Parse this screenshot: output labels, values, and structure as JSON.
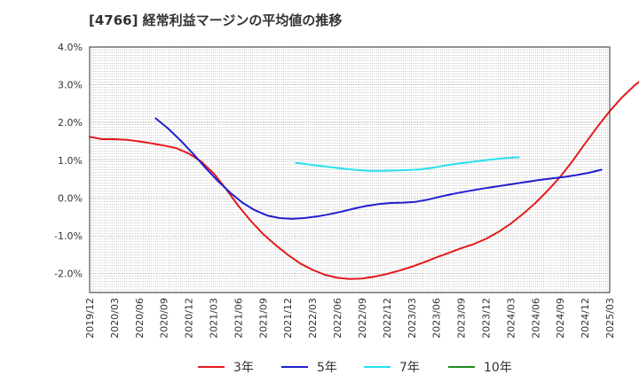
{
  "chart_data": {
    "type": "line",
    "title": "[4766]  経常利益マージンの平均値の推移",
    "xlabel": "",
    "ylabel": "",
    "ylim": [
      -2.5,
      4.0
    ],
    "y_ticks": [
      "4.0%",
      "3.0%",
      "2.0%",
      "1.0%",
      "0.0%",
      "-1.0%",
      "-2.0%"
    ],
    "y_tick_values": [
      4.0,
      3.0,
      2.0,
      1.0,
      0.0,
      -1.0,
      -2.0
    ],
    "x_ticks": [
      "2019/12",
      "2020/03",
      "2020/06",
      "2020/09",
      "2020/12",
      "2021/03",
      "2021/06",
      "2021/09",
      "2021/12",
      "2022/03",
      "2022/06",
      "2022/09",
      "2022/12",
      "2023/03",
      "2023/06",
      "2023/09",
      "2023/12",
      "2024/03",
      "2024/06",
      "2024/09",
      "2024/12",
      "2025/03"
    ],
    "grid": true,
    "legend_position": "bottom",
    "series": [
      {
        "name": "3年",
        "color": "#e31a1c",
        "start_index": 0,
        "values": [
          1.62,
          1.56,
          1.56,
          1.54,
          1.5,
          1.45,
          1.39,
          1.32,
          1.18,
          0.97,
          0.66,
          0.25,
          -0.2,
          -0.6,
          -0.95,
          -1.24,
          -1.5,
          -1.73,
          -1.9,
          -2.03,
          -2.11,
          -2.14,
          -2.13,
          -2.08,
          -2.01,
          -1.92,
          -1.82,
          -1.7,
          -1.57,
          -1.45,
          -1.33,
          -1.22,
          -1.08,
          -0.9,
          -0.68,
          -0.42,
          -0.13,
          0.2,
          0.56,
          0.98,
          1.44,
          1.88,
          2.3,
          2.67,
          2.98,
          3.25,
          3.49,
          3.7
        ]
      },
      {
        "name": "5年",
        "color": "#1f1fcf",
        "start_index": 8,
        "values": [
          2.11,
          1.84,
          1.53,
          1.18,
          0.81,
          0.46,
          0.15,
          -0.12,
          -0.32,
          -0.46,
          -0.53,
          -0.55,
          -0.53,
          -0.49,
          -0.43,
          -0.36,
          -0.28,
          -0.21,
          -0.16,
          -0.13,
          -0.12,
          -0.1,
          -0.04,
          0.04,
          0.11,
          0.17,
          0.23,
          0.28,
          0.33,
          0.38,
          0.43,
          0.48,
          0.52,
          0.56,
          0.61,
          0.67,
          0.75
        ]
      },
      {
        "name": "7年",
        "color": "#26e0ee",
        "start_index": 25,
        "values": [
          0.93,
          0.89,
          0.85,
          0.81,
          0.77,
          0.74,
          0.72,
          0.72,
          0.73,
          0.74,
          0.76,
          0.8,
          0.86,
          0.91,
          0.95,
          0.99,
          1.03,
          1.06,
          1.08
        ]
      },
      {
        "name": "10年",
        "color": "#1e8c1e",
        "start_index": 0,
        "values": []
      }
    ]
  }
}
